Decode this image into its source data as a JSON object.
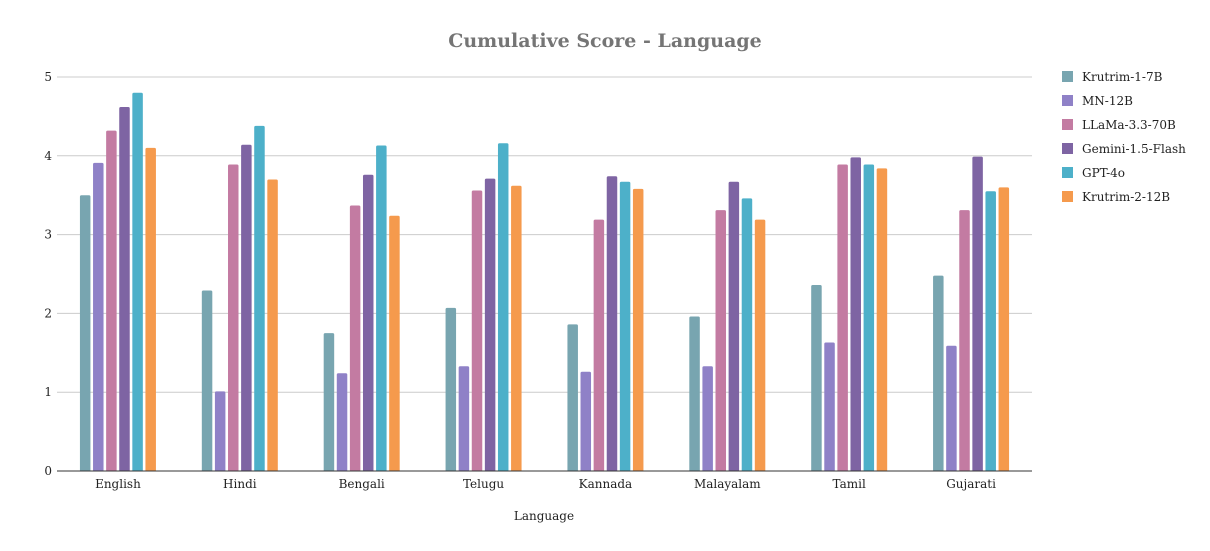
{
  "chart_data": {
    "type": "bar",
    "title": "Cumulative Score - Language",
    "xlabel": "Language",
    "ylabel": "",
    "ylim": [
      0,
      5
    ],
    "yticks": [
      "0",
      "1",
      "2",
      "3",
      "4",
      "5"
    ],
    "grid": true,
    "legend_position": "right",
    "categories": [
      "English",
      "Hindi",
      "Bengali",
      "Telugu",
      "Kannada",
      "Malayalam",
      "Tamil",
      "Gujarati"
    ],
    "series": [
      {
        "name": "Krutrim-1-7B",
        "color": "#78a5b0",
        "values": [
          3.5,
          2.29,
          1.75,
          2.07,
          1.86,
          1.96,
          2.36,
          2.48
        ]
      },
      {
        "name": "MN-12B",
        "color": "#8f81c7",
        "values": [
          3.91,
          1.01,
          1.24,
          1.33,
          1.26,
          1.33,
          1.63,
          1.59
        ]
      },
      {
        "name": "LLaMa-3.3-70B",
        "color": "#c37ba2",
        "values": [
          4.32,
          3.89,
          3.37,
          3.56,
          3.19,
          3.31,
          3.89,
          3.31
        ]
      },
      {
        "name": "Gemini-1.5-Flash",
        "color": "#7e64a3",
        "values": [
          4.62,
          4.14,
          3.76,
          3.71,
          3.74,
          3.67,
          3.98,
          3.99
        ]
      },
      {
        "name": "GPT-4o",
        "color": "#4db0c9",
        "values": [
          4.8,
          4.38,
          4.13,
          4.16,
          3.67,
          3.46,
          3.89,
          3.55
        ]
      },
      {
        "name": "Krutrim-2-12B",
        "color": "#f59a4d",
        "values": [
          4.1,
          3.7,
          3.24,
          3.62,
          3.58,
          3.19,
          3.84,
          3.6
        ]
      }
    ]
  }
}
